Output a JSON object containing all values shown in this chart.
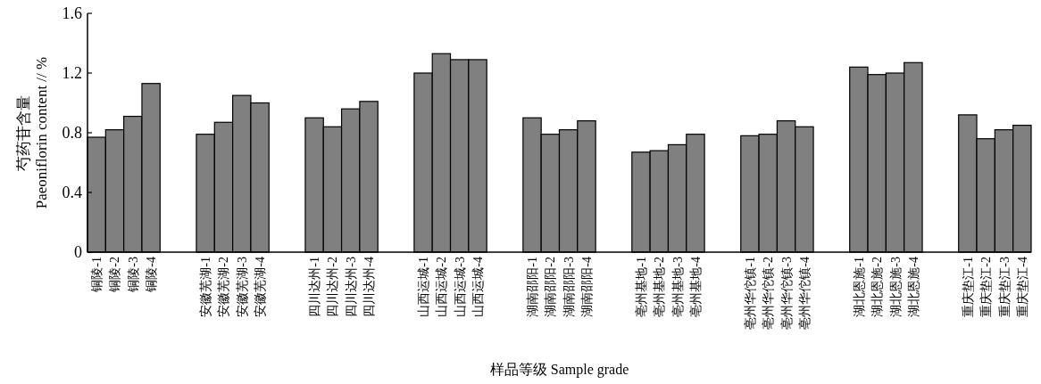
{
  "chart_data": {
    "type": "bar",
    "ylabel": "芍药苷含量\nPaeoniflorin content // %",
    "xlabel": "样品等级 Sample grade",
    "categories": [
      "铜陵-1",
      "铜陵-2",
      "铜陵-3",
      "铜陵-4",
      null,
      null,
      "安徽芜湖-1",
      "安徽芜湖-2",
      "安徽芜湖-3",
      "安徽芜湖-4",
      null,
      null,
      "四川达州-1",
      "四川达州-2",
      "四川达州-3",
      "四川达州-4",
      null,
      null,
      "山西运城-1",
      "山西运城-2",
      "山西运城-3",
      "山西运城-4",
      null,
      null,
      "湖南邵阳-1",
      "湖南邵阳-2",
      "湖南邵阳-3",
      "湖南邵阳-4",
      null,
      null,
      "亳州基地-1",
      "亳州基地-2",
      "亳州基地-3",
      "亳州基地-4",
      null,
      null,
      "亳州华佗镇-1",
      "亳州华佗镇-2",
      "亳州华佗镇-3",
      "亳州华佗镇-4",
      null,
      null,
      "湖北恩施-1",
      "湖北恩施-2",
      "湖北恩施-3",
      "湖北恩施-4",
      null,
      null,
      "重庆垫江-1",
      "重庆垫江-2",
      "重庆垫江-3",
      "重庆垫江-4"
    ],
    "values": [
      0.77,
      0.82,
      0.91,
      1.13,
      null,
      null,
      0.79,
      0.87,
      1.05,
      1.0,
      null,
      null,
      0.9,
      0.84,
      0.96,
      1.01,
      null,
      null,
      1.2,
      1.33,
      1.29,
      1.29,
      null,
      null,
      0.9,
      0.79,
      0.82,
      0.88,
      null,
      null,
      0.67,
      0.68,
      0.72,
      0.79,
      null,
      null,
      0.78,
      0.79,
      0.88,
      0.84,
      null,
      null,
      1.24,
      1.19,
      1.2,
      1.27,
      null,
      null,
      0.92,
      0.76,
      0.82,
      0.85
    ],
    "color": "#808080",
    "ylim": [
      0,
      1.6
    ],
    "yticks": [
      0,
      0.4,
      0.8,
      1.2,
      1.6
    ]
  }
}
